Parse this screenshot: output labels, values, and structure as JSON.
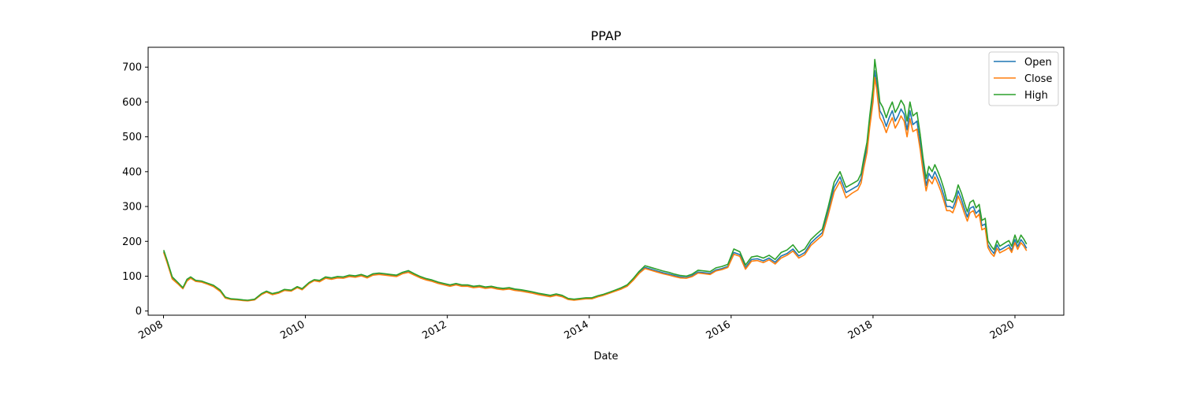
{
  "chart_data": {
    "type": "line",
    "title": "PPAP",
    "xlabel": "Date",
    "ylabel": "",
    "x_axis_type": "date",
    "xlim": [
      "2007-10-14",
      "2020-09-09"
    ],
    "ylim": [
      -12,
      757
    ],
    "x_ticks": [
      "2008",
      "2010",
      "2012",
      "2014",
      "2016",
      "2018",
      "2020"
    ],
    "y_ticks": [
      0,
      100,
      200,
      300,
      400,
      500,
      600,
      700
    ],
    "grid": false,
    "legend_position": "top-right",
    "x": [
      "2008-01-02",
      "2008-01-20",
      "2008-02-15",
      "2008-03-15",
      "2008-04-10",
      "2008-05-01",
      "2008-05-20",
      "2008-06-15",
      "2008-07-15",
      "2008-08-15",
      "2008-09-15",
      "2008-10-20",
      "2008-11-15",
      "2008-12-15",
      "2009-01-15",
      "2009-02-15",
      "2009-03-10",
      "2009-04-15",
      "2009-05-20",
      "2009-06-15",
      "2009-07-15",
      "2009-08-15",
      "2009-09-15",
      "2009-10-20",
      "2009-11-20",
      "2009-12-15",
      "2010-01-20",
      "2010-02-15",
      "2010-03-15",
      "2010-04-15",
      "2010-05-15",
      "2010-06-15",
      "2010-07-15",
      "2010-08-15",
      "2010-09-15",
      "2010-10-15",
      "2010-11-15",
      "2010-12-15",
      "2011-01-15",
      "2011-02-15",
      "2011-03-15",
      "2011-04-15",
      "2011-05-15",
      "2011-06-15",
      "2011-07-15",
      "2011-08-15",
      "2011-09-15",
      "2011-10-15",
      "2011-11-15",
      "2011-12-15",
      "2012-01-15",
      "2012-02-15",
      "2012-03-15",
      "2012-04-15",
      "2012-05-15",
      "2012-06-15",
      "2012-07-15",
      "2012-08-15",
      "2012-09-15",
      "2012-10-15",
      "2012-11-15",
      "2012-12-15",
      "2013-01-15",
      "2013-02-15",
      "2013-03-15",
      "2013-04-15",
      "2013-05-15",
      "2013-06-15",
      "2013-07-15",
      "2013-08-15",
      "2013-09-15",
      "2013-10-15",
      "2013-11-15",
      "2013-12-15",
      "2014-01-15",
      "2014-02-15",
      "2014-03-15",
      "2014-04-15",
      "2014-05-15",
      "2014-06-15",
      "2014-07-15",
      "2014-08-15",
      "2014-09-15",
      "2014-10-15",
      "2014-11-15",
      "2014-12-15",
      "2015-01-15",
      "2015-02-15",
      "2015-03-15",
      "2015-04-15",
      "2015-05-15",
      "2015-06-15",
      "2015-07-15",
      "2015-08-15",
      "2015-09-15",
      "2015-10-15",
      "2015-11-15",
      "2015-12-15",
      "2016-01-15",
      "2016-02-15",
      "2016-03-15",
      "2016-04-15",
      "2016-05-15",
      "2016-06-15",
      "2016-07-15",
      "2016-08-15",
      "2016-09-15",
      "2016-10-15",
      "2016-11-15",
      "2016-12-15",
      "2017-01-15",
      "2017-02-15",
      "2017-03-15",
      "2017-04-15",
      "2017-05-15",
      "2017-06-15",
      "2017-07-15",
      "2017-08-15",
      "2017-09-15",
      "2017-10-15",
      "2017-11-01",
      "2017-11-15",
      "2017-12-01",
      "2017-12-15",
      "2018-01-01",
      "2018-01-10",
      "2018-01-20",
      "2018-02-05",
      "2018-02-20",
      "2018-03-10",
      "2018-03-25",
      "2018-04-10",
      "2018-04-25",
      "2018-05-10",
      "2018-05-25",
      "2018-06-10",
      "2018-06-25",
      "2018-07-10",
      "2018-07-25",
      "2018-08-15",
      "2018-09-01",
      "2018-09-15",
      "2018-10-01",
      "2018-10-15",
      "2018-11-01",
      "2018-11-15",
      "2018-12-01",
      "2018-12-15",
      "2019-01-01",
      "2019-01-15",
      "2019-02-01",
      "2019-02-15",
      "2019-03-01",
      "2019-03-15",
      "2019-04-01",
      "2019-04-15",
      "2019-05-01",
      "2019-05-15",
      "2019-06-01",
      "2019-06-15",
      "2019-07-01",
      "2019-07-15",
      "2019-08-01",
      "2019-08-15",
      "2019-09-01",
      "2019-09-15",
      "2019-10-01",
      "2019-10-15",
      "2019-11-01",
      "2019-11-15",
      "2019-12-01",
      "2019-12-15",
      "2020-01-01",
      "2020-01-15",
      "2020-02-01",
      "2020-02-15",
      "2020-03-01"
    ],
    "series": [
      {
        "name": "Open",
        "color": "#1f77b4",
        "values": [
          170,
          140,
          95,
          80,
          65,
          88,
          95,
          86,
          84,
          78,
          72,
          58,
          38,
          34,
          33,
          31,
          30,
          33,
          48,
          55,
          48,
          52,
          60,
          58,
          68,
          62,
          80,
          88,
          85,
          95,
          92,
          96,
          95,
          100,
          98,
          102,
          96,
          104,
          106,
          104,
          102,
          100,
          108,
          112,
          104,
          96,
          90,
          86,
          80,
          76,
          72,
          76,
          72,
          72,
          68,
          70,
          66,
          68,
          64,
          62,
          64,
          60,
          58,
          55,
          52,
          48,
          45,
          42,
          46,
          42,
          34,
          32,
          34,
          36,
          36,
          42,
          46,
          52,
          58,
          64,
          72,
          90,
          110,
          125,
          120,
          115,
          110,
          106,
          102,
          98,
          96,
          102,
          112,
          110,
          108,
          118,
          122,
          128,
          168,
          162,
          125,
          148,
          150,
          144,
          152,
          140,
          158,
          165,
          178,
          158,
          168,
          195,
          210,
          225,
          285,
          355,
          385,
          340,
          350,
          360,
          380,
          425,
          470,
          545,
          620,
          690,
          655,
          575,
          560,
          530,
          555,
          575,
          545,
          560,
          580,
          565,
          520,
          575,
          535,
          545,
          480,
          420,
          360,
          395,
          380,
          400,
          380,
          360,
          330,
          300,
          300,
          295,
          315,
          345,
          320,
          295,
          270,
          295,
          300,
          280,
          290,
          245,
          250,
          190,
          175,
          165,
          190,
          175,
          180,
          185,
          190,
          175,
          205,
          185,
          205,
          195,
          180
        ]
      },
      {
        "name": "Close",
        "color": "#ff7f0e",
        "values": [
          168,
          138,
          92,
          78,
          64,
          86,
          94,
          85,
          83,
          77,
          70,
          56,
          37,
          33,
          32,
          30,
          29,
          32,
          47,
          54,
          47,
          51,
          59,
          57,
          67,
          61,
          79,
          87,
          84,
          94,
          91,
          95,
          94,
          99,
          97,
          101,
          95,
          103,
          105,
          103,
          101,
          99,
          107,
          111,
          103,
          95,
          89,
          85,
          79,
          75,
          71,
          75,
          71,
          71,
          67,
          69,
          65,
          67,
          63,
          61,
          63,
          59,
          57,
          54,
          51,
          47,
          44,
          41,
          45,
          41,
          33,
          31,
          33,
          35,
          35,
          41,
          45,
          51,
          57,
          63,
          71,
          88,
          108,
          122,
          117,
          112,
          107,
          103,
          99,
          95,
          94,
          99,
          109,
          107,
          105,
          115,
          119,
          125,
          163,
          157,
          120,
          143,
          145,
          139,
          147,
          135,
          152,
          160,
          172,
          152,
          162,
          188,
          202,
          217,
          275,
          342,
          372,
          325,
          338,
          348,
          368,
          412,
          455,
          528,
          600,
          670,
          635,
          555,
          540,
          512,
          535,
          555,
          525,
          540,
          560,
          545,
          500,
          552,
          515,
          522,
          462,
          402,
          345,
          378,
          365,
          385,
          365,
          345,
          315,
          288,
          288,
          282,
          302,
          330,
          306,
          282,
          258,
          282,
          288,
          268,
          278,
          233,
          238,
          182,
          165,
          157,
          180,
          167,
          172,
          176,
          182,
          168,
          196,
          177,
          196,
          187,
          173
        ]
      },
      {
        "name": "High",
        "color": "#2ca02c",
        "values": [
          175,
          145,
          98,
          82,
          67,
          91,
          98,
          88,
          86,
          80,
          74,
          60,
          40,
          35,
          34,
          32,
          31,
          34,
          50,
          57,
          50,
          54,
          62,
          60,
          70,
          64,
          82,
          90,
          88,
          98,
          95,
          99,
          98,
          103,
          101,
          105,
          99,
          107,
          109,
          107,
          105,
          103,
          111,
          116,
          107,
          99,
          93,
          89,
          83,
          79,
          75,
          79,
          75,
          75,
          71,
          73,
          69,
          71,
          67,
          65,
          67,
          63,
          61,
          58,
          55,
          51,
          48,
          45,
          49,
          45,
          36,
          34,
          36,
          38,
          38,
          44,
          48,
          54,
          60,
          67,
          75,
          93,
          114,
          130,
          125,
          120,
          115,
          111,
          106,
          102,
          100,
          106,
          117,
          115,
          113,
          124,
          128,
          134,
          178,
          170,
          132,
          155,
          158,
          152,
          160,
          148,
          168,
          175,
          190,
          168,
          178,
          205,
          220,
          235,
          298,
          370,
          400,
          355,
          365,
          375,
          395,
          440,
          485,
          560,
          640,
          722,
          680,
          600,
          585,
          555,
          580,
          600,
          570,
          585,
          605,
          590,
          545,
          600,
          560,
          570,
          505,
          440,
          380,
          415,
          400,
          420,
          400,
          380,
          350,
          318,
          318,
          312,
          332,
          362,
          338,
          312,
          285,
          312,
          318,
          296,
          306,
          260,
          266,
          202,
          186,
          176,
          202,
          186,
          192,
          197,
          202,
          186,
          218,
          196,
          218,
          207,
          192
        ]
      }
    ]
  }
}
